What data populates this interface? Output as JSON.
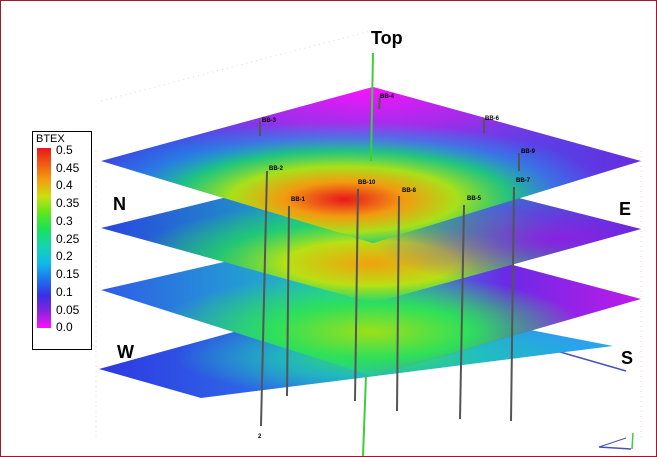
{
  "labels": {
    "top": "Top",
    "north": "N",
    "east": "E",
    "west": "W",
    "south": "S"
  },
  "legend": {
    "title": "BTEX",
    "ticks": [
      "0.5",
      "0.45",
      "0.4",
      "0.35",
      "0.3",
      "0.25",
      "0.2",
      "0.15",
      "0.1",
      "0.05",
      "0.0"
    ],
    "colors": [
      "#e8161b",
      "#f25b12",
      "#f2a00f",
      "#c9e010",
      "#5de81c",
      "#19e05a",
      "#13d4b2",
      "#12b9e8",
      "#1f73ee",
      "#3a2fe4",
      "#6a22d6",
      "#b617e6",
      "#ff10ff"
    ]
  },
  "wells": [
    {
      "id": "BB-4",
      "label": "BB-4"
    },
    {
      "id": "BB-3",
      "label": "BB-3"
    },
    {
      "id": "BB-6",
      "label": "BB-6"
    },
    {
      "id": "BB-2",
      "label": "BB-2"
    },
    {
      "id": "BB-8",
      "label": "BB-8"
    },
    {
      "id": "BB-10",
      "label": "BB-10"
    },
    {
      "id": "BB-9",
      "label": "BB-9"
    },
    {
      "id": "BB-7",
      "label": "BB-7"
    },
    {
      "id": "BB-1",
      "label": "BB-1"
    },
    {
      "id": "BB-5",
      "label": "BB-5"
    },
    {
      "id": "bottom",
      "label": "2"
    }
  ],
  "colors": {
    "frame": "#9c1a2e",
    "axis_green": "#3ccf3c",
    "axis_blue": "#4b52b5",
    "axis_red": "#c0392b",
    "well": "#555555"
  }
}
